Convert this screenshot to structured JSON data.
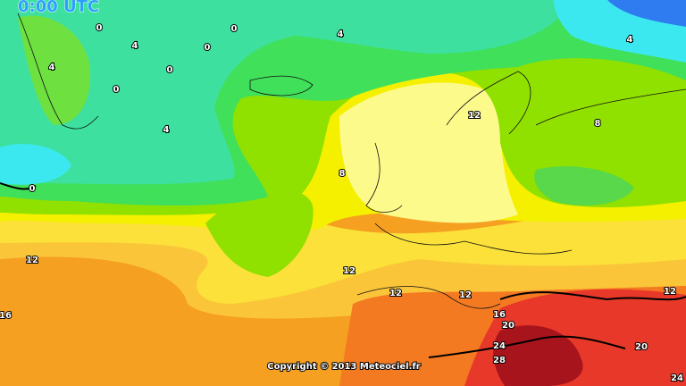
{
  "header": {
    "time": "0:00 UTC"
  },
  "contour_labels": [
    0,
    4,
    0,
    0,
    0,
    4,
    0,
    4,
    0,
    4,
    4,
    12,
    8,
    8,
    12,
    16,
    12,
    12,
    12,
    12,
    16,
    20,
    24,
    28,
    20,
    24
  ],
  "credit": "Copyright © 2013 Meteociel.fr"
}
